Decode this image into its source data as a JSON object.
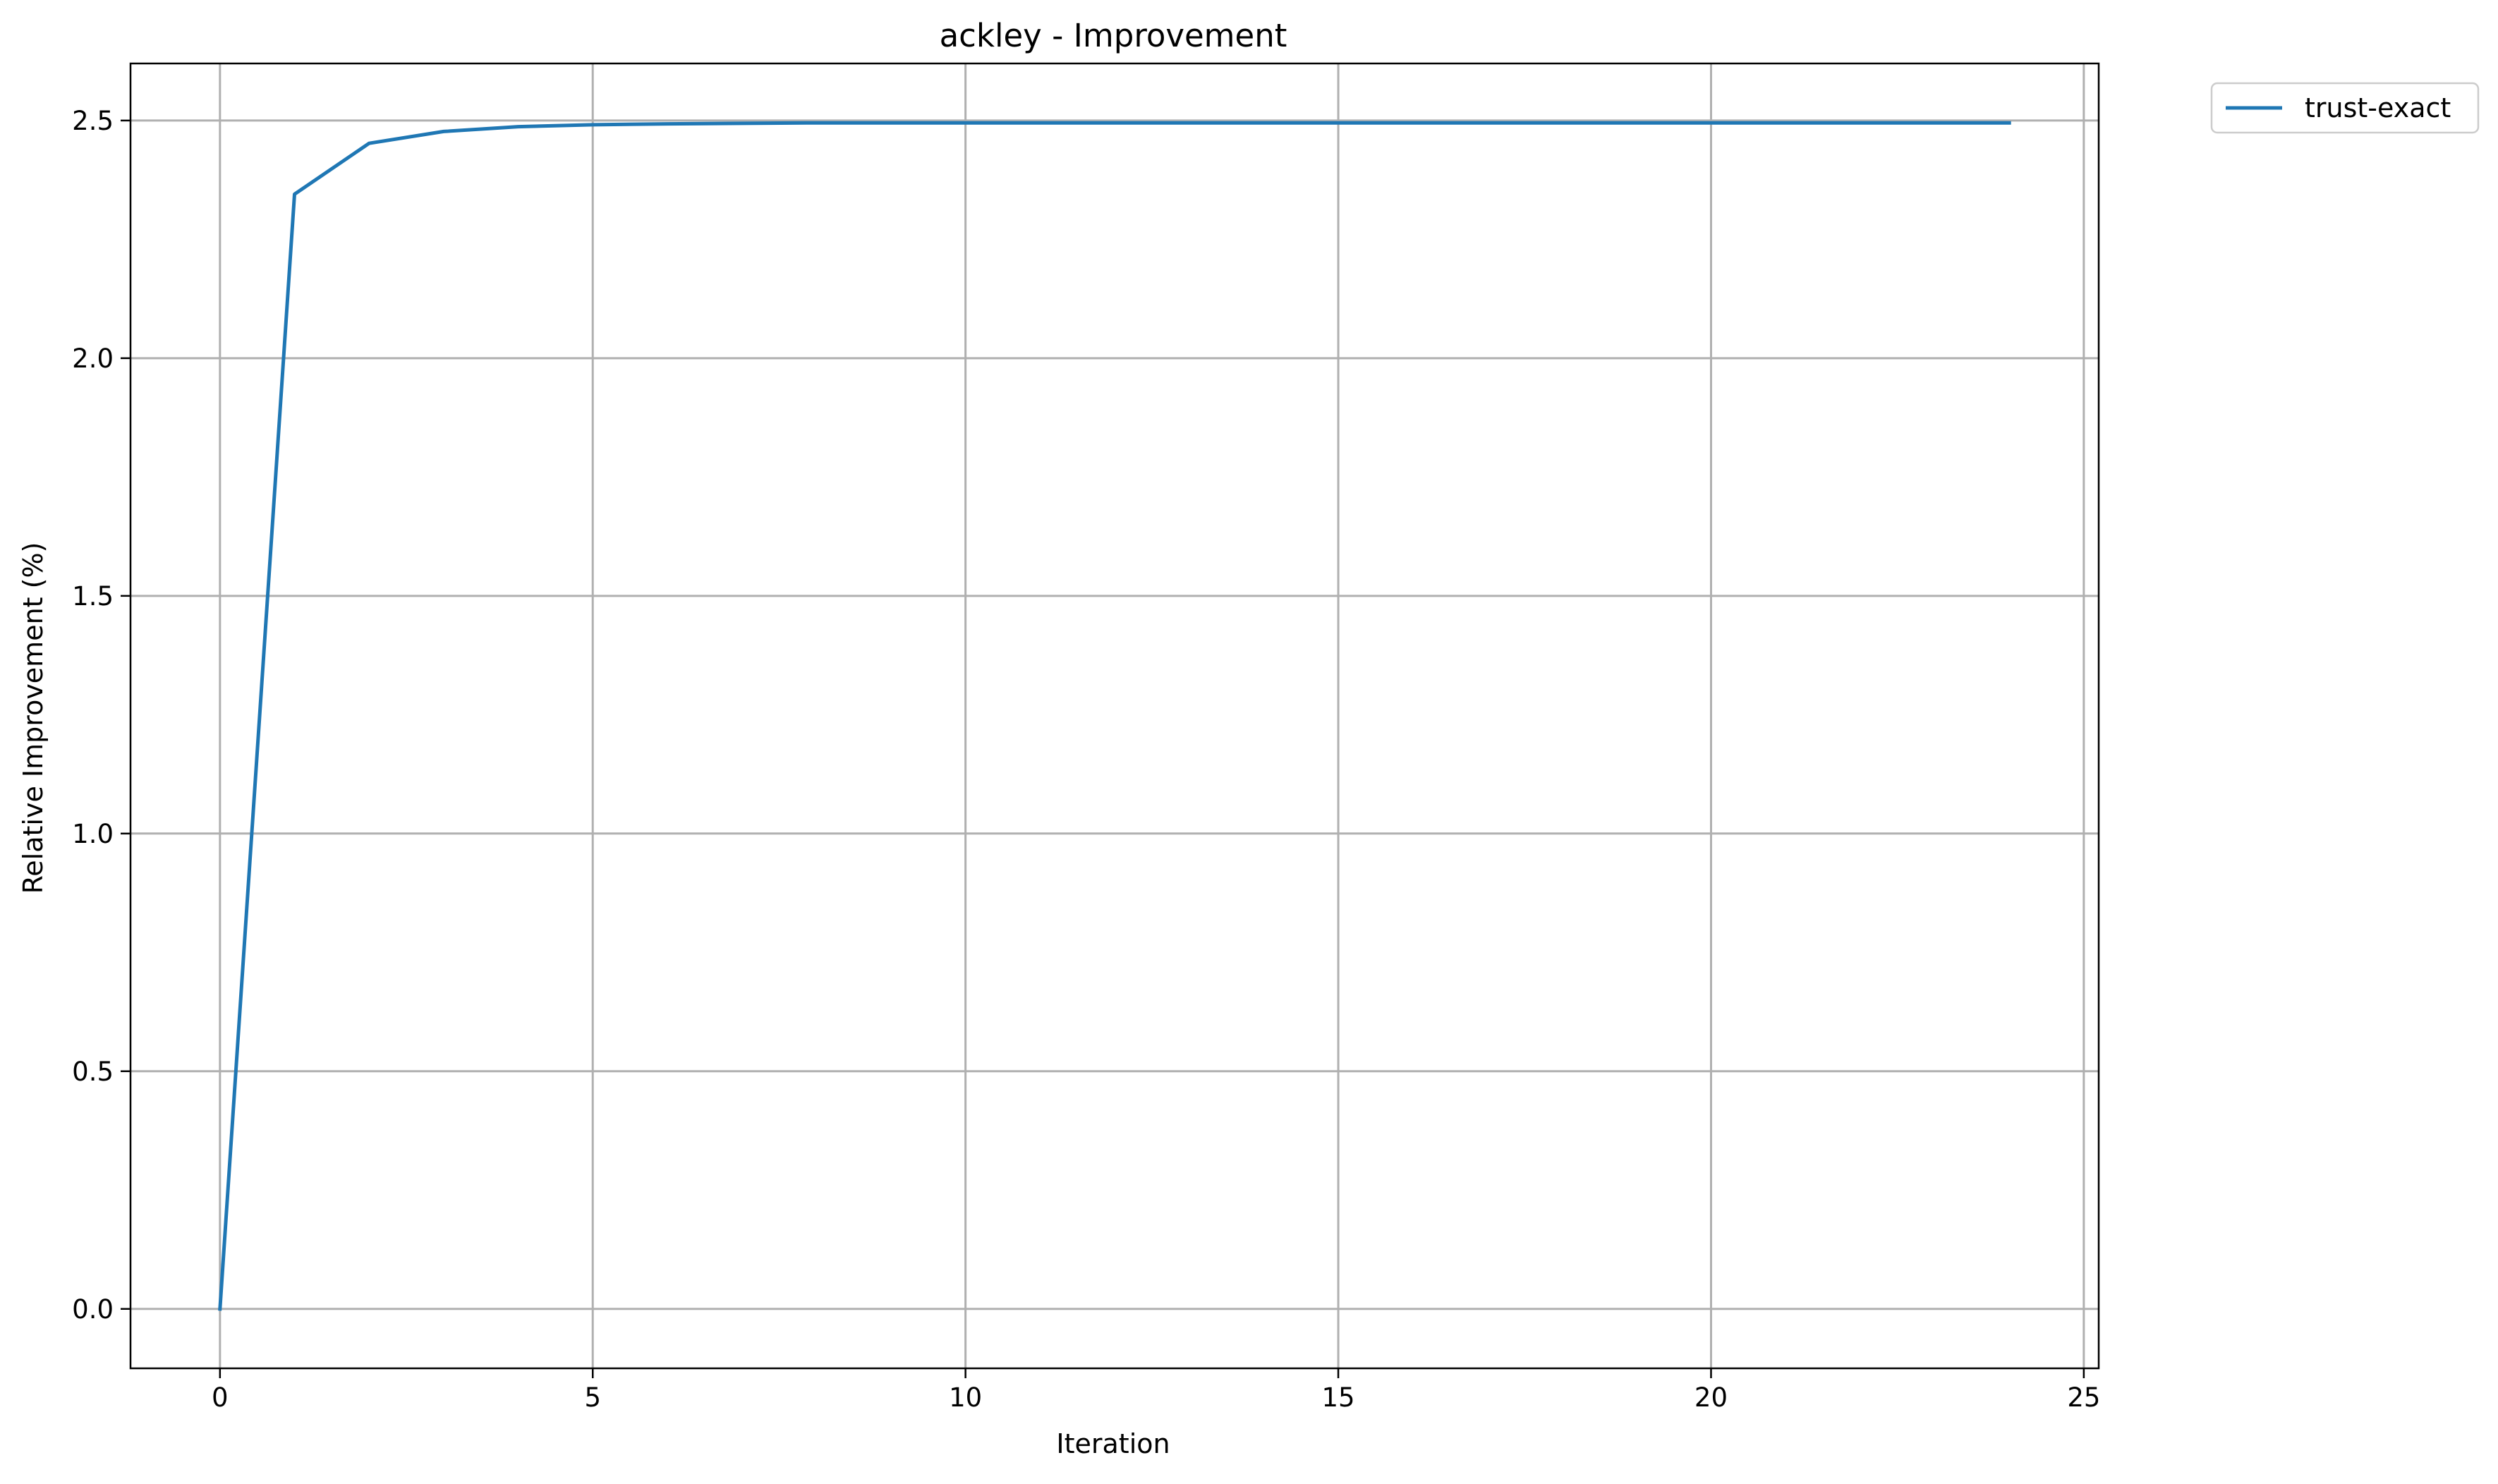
{
  "chart_data": {
    "type": "line",
    "title": "ackley - Improvement",
    "xlabel": "Iteration",
    "ylabel": "Relative Improvement (%)",
    "xlim": [
      -1.2,
      25.2
    ],
    "ylim": [
      -0.125,
      2.62
    ],
    "xticks": [
      0,
      5,
      10,
      15,
      20,
      25
    ],
    "xtick_labels": [
      "0",
      "5",
      "10",
      "15",
      "20",
      "25"
    ],
    "yticks": [
      0.0,
      0.5,
      1.0,
      1.5,
      2.0,
      2.5
    ],
    "ytick_labels": [
      "0.0",
      "0.5",
      "1.0",
      "1.5",
      "2.0",
      "2.5"
    ],
    "grid": true,
    "legend": {
      "placement": "outside-top-right"
    },
    "series": [
      {
        "name": "trust-exact",
        "color": "#1f77b4",
        "x": [
          0,
          1,
          2,
          3,
          4,
          5,
          6,
          7,
          8,
          9,
          10,
          11,
          12,
          13,
          14,
          15,
          16,
          17,
          18,
          19,
          20,
          21,
          22,
          23,
          24
        ],
        "y": [
          0.0,
          2.345,
          2.452,
          2.477,
          2.487,
          2.491,
          2.493,
          2.494,
          2.495,
          2.495,
          2.495,
          2.495,
          2.495,
          2.495,
          2.495,
          2.495,
          2.495,
          2.495,
          2.495,
          2.495,
          2.495,
          2.495,
          2.495,
          2.495,
          2.495
        ]
      }
    ]
  }
}
